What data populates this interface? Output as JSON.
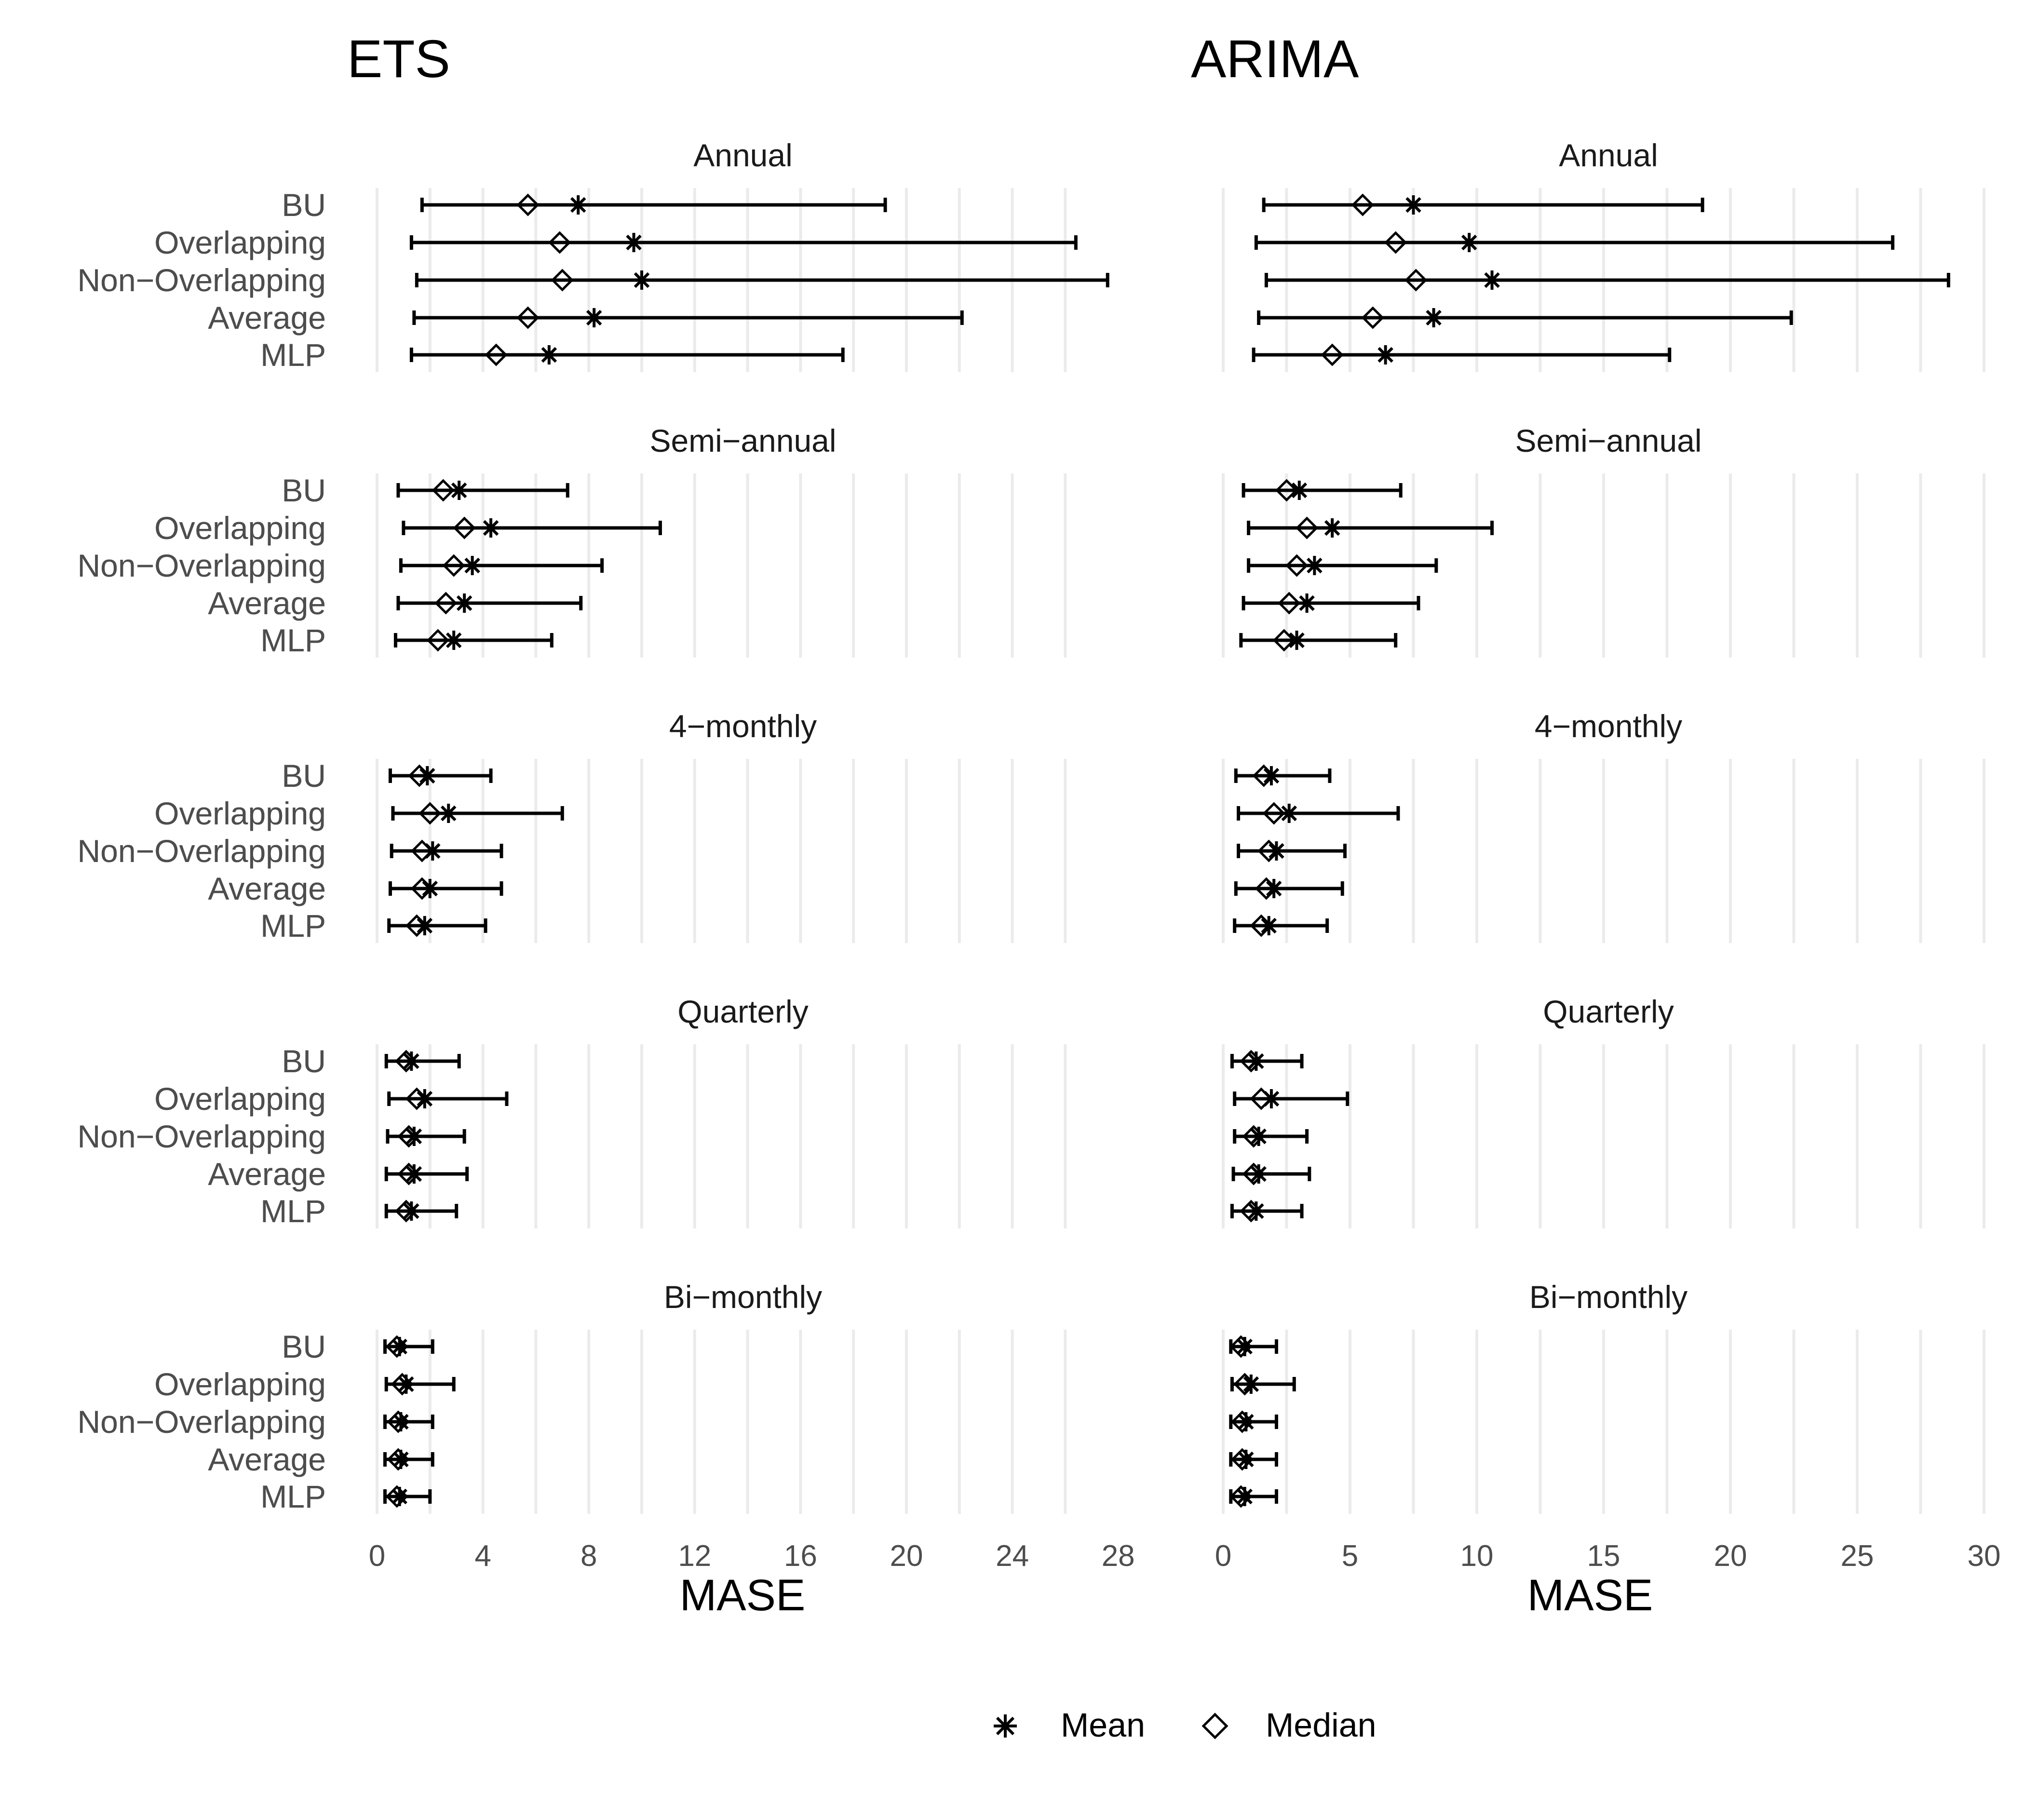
{
  "legend": {
    "mean": "Mean",
    "median": "Median"
  },
  "chart_data": [
    {
      "type": "errorbar",
      "title": "ETS",
      "xlabel": "MASE",
      "xlim": [
        0,
        30
      ],
      "xticks": [
        0,
        4,
        8,
        12,
        16,
        20,
        24,
        28
      ],
      "categories": [
        "BU",
        "Overlapping",
        "Non−Overlapping",
        "Average",
        "MLP"
      ],
      "panels": [
        {
          "name": "Annual",
          "lower": [
            1.7,
            1.3,
            1.5,
            1.4,
            1.3
          ],
          "upper": [
            19.2,
            26.4,
            27.6,
            22.1,
            17.6
          ],
          "mean": [
            7.6,
            9.7,
            10.0,
            8.2,
            6.5
          ],
          "median": [
            5.7,
            6.9,
            7.0,
            5.7,
            4.5
          ]
        },
        {
          "name": "Semi−annual",
          "lower": [
            0.8,
            1.0,
            0.9,
            0.8,
            0.7
          ],
          "upper": [
            7.2,
            10.7,
            8.5,
            7.7,
            6.6
          ],
          "mean": [
            3.1,
            4.3,
            3.6,
            3.3,
            2.9
          ],
          "median": [
            2.5,
            3.3,
            2.9,
            2.6,
            2.3
          ]
        },
        {
          "name": "4−monthly",
          "lower": [
            0.5,
            0.6,
            0.55,
            0.5,
            0.45
          ],
          "upper": [
            4.3,
            7.0,
            4.7,
            4.7,
            4.1
          ],
          "mean": [
            1.9,
            2.7,
            2.1,
            2.0,
            1.8
          ],
          "median": [
            1.6,
            2.0,
            1.7,
            1.7,
            1.5
          ]
        },
        {
          "name": "Quarterly",
          "lower": [
            0.35,
            0.45,
            0.4,
            0.35,
            0.35
          ],
          "upper": [
            3.1,
            4.9,
            3.3,
            3.4,
            3.0
          ],
          "mean": [
            1.3,
            1.8,
            1.4,
            1.4,
            1.3
          ],
          "median": [
            1.1,
            1.5,
            1.2,
            1.2,
            1.1
          ]
        },
        {
          "name": "Bi−monthly",
          "lower": [
            0.3,
            0.35,
            0.3,
            0.3,
            0.3
          ],
          "upper": [
            2.1,
            2.9,
            2.1,
            2.1,
            2.0
          ],
          "mean": [
            0.85,
            1.1,
            0.9,
            0.9,
            0.85
          ],
          "median": [
            0.75,
            0.95,
            0.8,
            0.8,
            0.75
          ]
        }
      ]
    },
    {
      "type": "errorbar",
      "title": "ARIMA",
      "xlabel": "MASE",
      "xlim": [
        0,
        30
      ],
      "xticks": [
        0,
        5,
        10,
        15,
        20,
        25,
        30
      ],
      "categories": [
        "BU",
        "Overlapping",
        "Non−Overlapping",
        "Average",
        "MLP"
      ],
      "panels": [
        {
          "name": "Annual",
          "lower": [
            1.6,
            1.3,
            1.7,
            1.4,
            1.2
          ],
          "upper": [
            18.9,
            26.4,
            28.6,
            22.4,
            17.6
          ],
          "mean": [
            7.5,
            9.7,
            10.6,
            8.3,
            6.4
          ],
          "median": [
            5.5,
            6.8,
            7.6,
            5.9,
            4.3
          ]
        },
        {
          "name": "Semi−annual",
          "lower": [
            0.8,
            1.0,
            1.0,
            0.8,
            0.7
          ],
          "upper": [
            7.0,
            10.6,
            8.4,
            7.7,
            6.8
          ],
          "mean": [
            3.0,
            4.3,
            3.6,
            3.3,
            2.9
          ],
          "median": [
            2.5,
            3.3,
            2.9,
            2.6,
            2.4
          ]
        },
        {
          "name": "4−monthly",
          "lower": [
            0.5,
            0.6,
            0.6,
            0.5,
            0.45
          ],
          "upper": [
            4.2,
            6.9,
            4.8,
            4.7,
            4.1
          ],
          "mean": [
            1.9,
            2.6,
            2.1,
            2.0,
            1.8
          ],
          "median": [
            1.6,
            2.0,
            1.8,
            1.7,
            1.5
          ]
        },
        {
          "name": "Quarterly",
          "lower": [
            0.35,
            0.45,
            0.45,
            0.4,
            0.35
          ],
          "upper": [
            3.1,
            4.9,
            3.3,
            3.4,
            3.1
          ],
          "mean": [
            1.3,
            1.9,
            1.4,
            1.4,
            1.3
          ],
          "median": [
            1.1,
            1.5,
            1.2,
            1.2,
            1.1
          ]
        },
        {
          "name": "Bi−monthly",
          "lower": [
            0.3,
            0.35,
            0.3,
            0.3,
            0.3
          ],
          "upper": [
            2.1,
            2.8,
            2.1,
            2.1,
            2.1
          ],
          "mean": [
            0.85,
            1.1,
            0.9,
            0.9,
            0.85
          ],
          "median": [
            0.7,
            0.85,
            0.75,
            0.75,
            0.7
          ]
        }
      ]
    }
  ]
}
